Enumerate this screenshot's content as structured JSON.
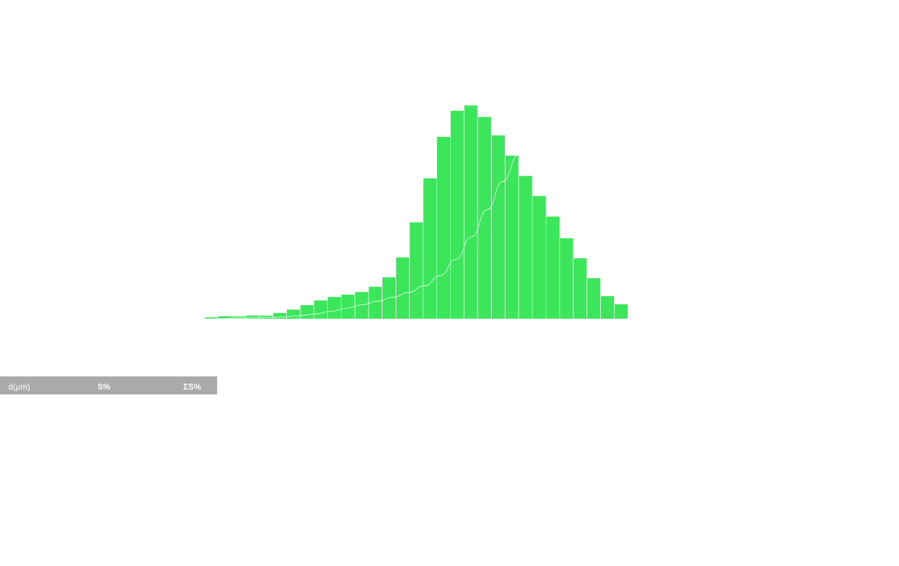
{
  "chart_data": {
    "type": "bar",
    "title": "",
    "xlabel": "",
    "ylabel": "",
    "bar_color": "#3ce65a",
    "border_color": "#ffffff",
    "curve_color": "#ffffff",
    "grid": false,
    "values": [
      0.9,
      1.4,
      1.3,
      1.7,
      1.7,
      2.9,
      4.5,
      6.6,
      8.8,
      10.4,
      11.5,
      12.7,
      15.2,
      19.6,
      28.9,
      45.3,
      65.9,
      85.3,
      97.5,
      100,
      94.6,
      86.0,
      76.5,
      67.0,
      57.6,
      48.0,
      37.9,
      28.5,
      19.2,
      10.8,
      7.0
    ],
    "cumulative": [
      0,
      0.2,
      0.5,
      0.8,
      1.0,
      1.3,
      2.0,
      3.0,
      4.6,
      6.5,
      8.6,
      10.8,
      13.3,
      16.2,
      20.3,
      26.4,
      36.3,
      50.2,
      66.6,
      84.0,
      100
    ]
  },
  "table": {
    "headers": [
      "d(μm)",
      "S%",
      "ΣS%"
    ]
  }
}
